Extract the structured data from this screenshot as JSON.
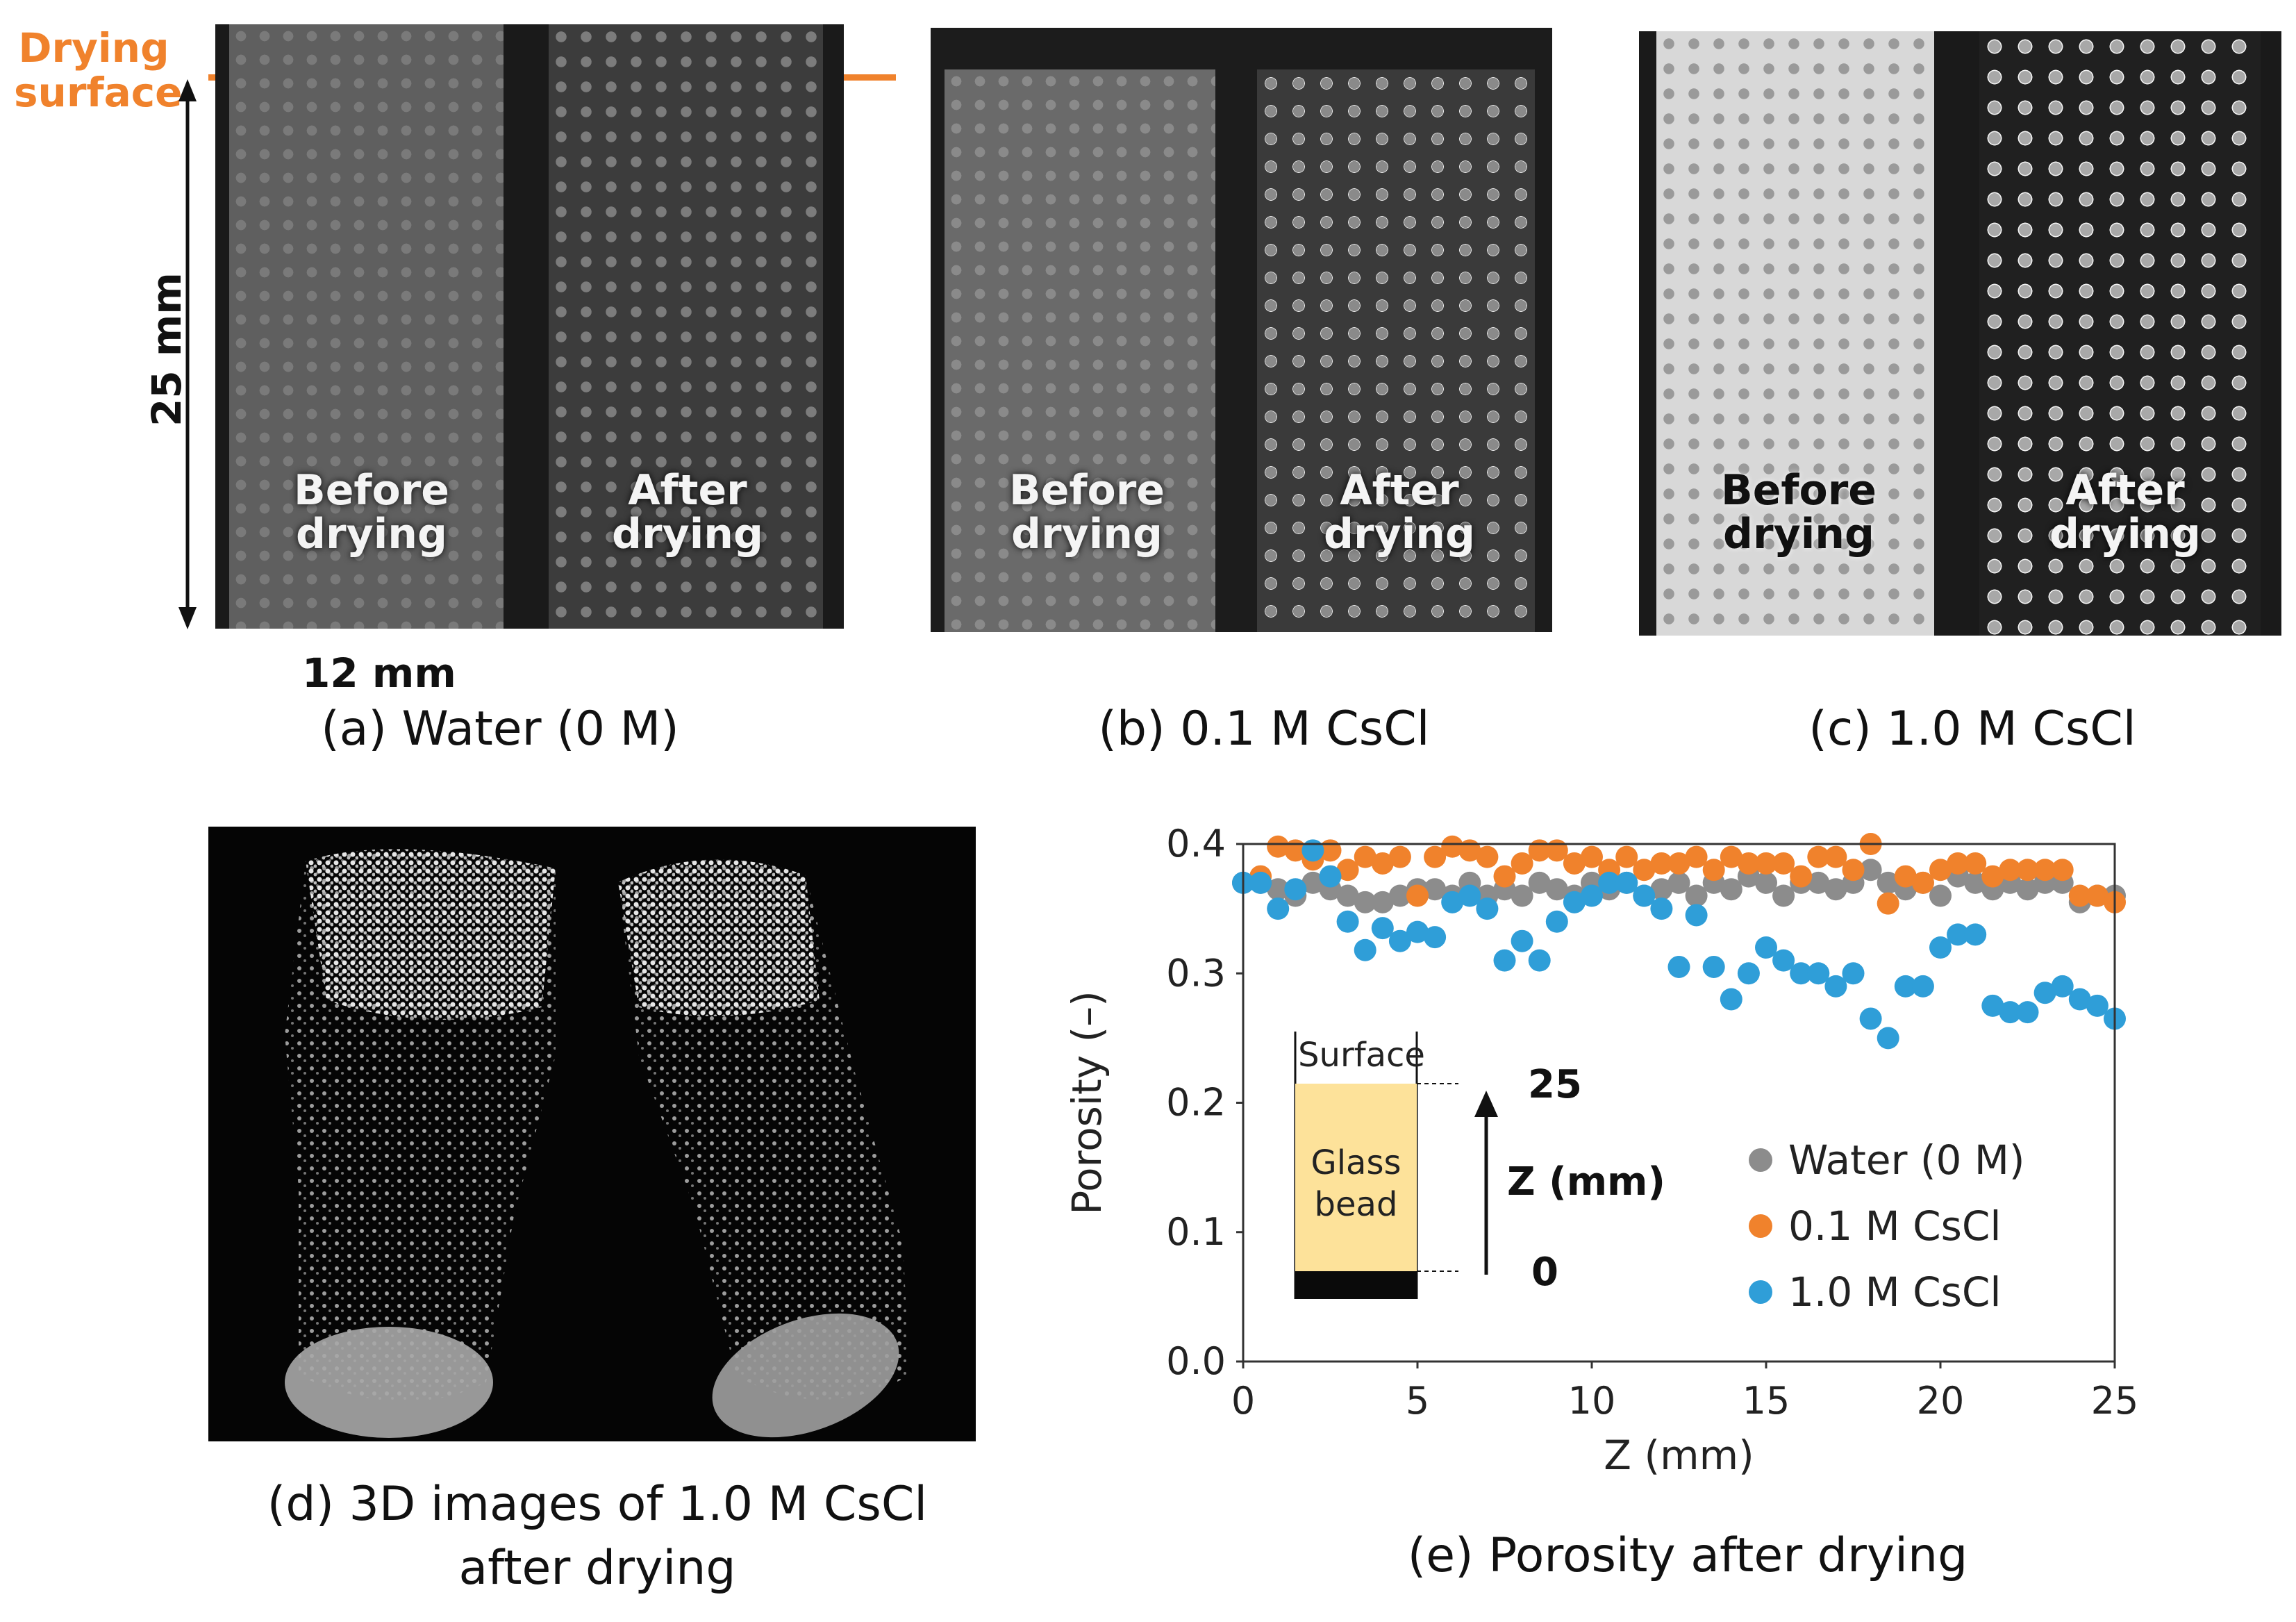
{
  "annotations": {
    "drying_surface": "Drying surface",
    "height_label": "25 mm",
    "width_label": "12 mm"
  },
  "panels": {
    "a": {
      "caption": "(a) Water (0 M)",
      "before_label": "Before drying",
      "after_label": "After drying"
    },
    "b": {
      "caption": "(b) 0.1 M CsCl",
      "before_label": "Before drying",
      "after_label": "After drying"
    },
    "c": {
      "caption": "(c) 1.0 M CsCl",
      "before_label": "Before drying",
      "after_label": "After drying"
    },
    "d": {
      "caption_line1": "(d) 3D images of 1.0 M CsCl",
      "caption_line2": "after drying"
    },
    "e": {
      "caption": "(e) Porosity after drying"
    }
  },
  "colors": {
    "water": "#8c8c8c",
    "cscl_01": "#f0822c",
    "cscl_10": "#2f9ed8",
    "drying_line": "#f0822c",
    "glass_bead": "#fde29a"
  },
  "chart_data": {
    "type": "scatter",
    "title": "(e) Porosity after drying",
    "xlabel": "Z (mm)",
    "ylabel": "Porosity (–)",
    "xlim": [
      0,
      25
    ],
    "ylim": [
      0.0,
      0.4
    ],
    "xticks": [
      "0",
      "5",
      "10",
      "15",
      "20",
      "25"
    ],
    "yticks": [
      "0.0",
      "0.1",
      "0.2",
      "0.3",
      "0.4"
    ],
    "legend_position": "lower-right",
    "series": [
      {
        "name": "Water (0 M)",
        "color_key": "water",
        "x": [
          0,
          0.5,
          1,
          1.5,
          2,
          2.5,
          3,
          3.5,
          4,
          4.5,
          5,
          5.5,
          6,
          6.5,
          7,
          7.5,
          8,
          8.5,
          9,
          9.5,
          10,
          10.5,
          11,
          11.5,
          12,
          12.5,
          13,
          13.5,
          14,
          14.5,
          15,
          15.5,
          16,
          16.5,
          17,
          17.5,
          18,
          18.5,
          19,
          19.5,
          20,
          20.5,
          21,
          21.5,
          22,
          22.5,
          23,
          23.5,
          24,
          24.5,
          25
        ],
        "y": [
          0.37,
          0.37,
          0.365,
          0.36,
          0.37,
          0.365,
          0.36,
          0.355,
          0.355,
          0.36,
          0.365,
          0.365,
          0.36,
          0.37,
          0.36,
          0.365,
          0.36,
          0.37,
          0.365,
          0.36,
          0.37,
          0.365,
          0.37,
          0.36,
          0.365,
          0.37,
          0.36,
          0.37,
          0.365,
          0.375,
          0.37,
          0.36,
          0.37,
          0.37,
          0.365,
          0.37,
          0.38,
          0.37,
          0.365,
          0.37,
          0.36,
          0.375,
          0.37,
          0.365,
          0.37,
          0.365,
          0.37,
          0.37,
          0.355,
          0.36,
          0.36
        ]
      },
      {
        "name": "0.1 M CsCl",
        "color_key": "cscl_01",
        "x": [
          0.5,
          1,
          1.5,
          2,
          2.5,
          3,
          3.5,
          4,
          4.5,
          5,
          5.5,
          6,
          6.5,
          7,
          7.5,
          8,
          8.5,
          9,
          9.5,
          10,
          10.5,
          11,
          11.5,
          12,
          12.5,
          13,
          13.5,
          14,
          14.5,
          15,
          15.5,
          16,
          16.5,
          17,
          17.5,
          18,
          18.5,
          19,
          19.5,
          20,
          20.5,
          21,
          21.5,
          22,
          22.5,
          23,
          23.5,
          24,
          24.5,
          25
        ],
        "y": [
          0.375,
          0.398,
          0.395,
          0.388,
          0.395,
          0.38,
          0.39,
          0.385,
          0.39,
          0.36,
          0.39,
          0.398,
          0.395,
          0.39,
          0.375,
          0.385,
          0.395,
          0.395,
          0.385,
          0.39,
          0.38,
          0.39,
          0.38,
          0.385,
          0.385,
          0.39,
          0.38,
          0.39,
          0.385,
          0.385,
          0.385,
          0.375,
          0.39,
          0.39,
          0.38,
          0.4,
          0.354,
          0.375,
          0.37,
          0.38,
          0.385,
          0.385,
          0.375,
          0.38,
          0.38,
          0.38,
          0.38,
          0.36,
          0.36,
          0.355
        ]
      },
      {
        "name": "1.0 M CsCl",
        "color_key": "cscl_10",
        "x": [
          0,
          0.5,
          1,
          1.5,
          2,
          2.5,
          3,
          3.5,
          4,
          4.5,
          5,
          5.5,
          6,
          6.5,
          7,
          7.5,
          8,
          8.5,
          9,
          9.5,
          10,
          10.5,
          11,
          11.5,
          12,
          12.5,
          13,
          13.5,
          14,
          14.5,
          15,
          15.5,
          16,
          16.5,
          17,
          17.5,
          18,
          18.5,
          19,
          19.5,
          20,
          20.5,
          21,
          21.5,
          22,
          22.5,
          23,
          23.5,
          24,
          24.5,
          25
        ],
        "y": [
          0.37,
          0.37,
          0.35,
          0.365,
          0.395,
          0.375,
          0.34,
          0.318,
          0.335,
          0.325,
          0.332,
          0.328,
          0.355,
          0.36,
          0.35,
          0.31,
          0.325,
          0.31,
          0.34,
          0.355,
          0.36,
          0.37,
          0.37,
          0.36,
          0.35,
          0.305,
          0.345,
          0.305,
          0.28,
          0.3,
          0.32,
          0.31,
          0.3,
          0.3,
          0.29,
          0.3,
          0.265,
          0.25,
          0.29,
          0.29,
          0.32,
          0.33,
          0.33,
          0.275,
          0.27,
          0.27,
          0.285,
          0.29,
          0.28,
          0.275,
          0.265
        ]
      }
    ],
    "inset": {
      "surface_label": "Surface",
      "bead_label_line1": "Glass",
      "bead_label_line2": "bead",
      "z_label": "Z (mm)",
      "top_value": "25",
      "bottom_value": "0"
    }
  }
}
